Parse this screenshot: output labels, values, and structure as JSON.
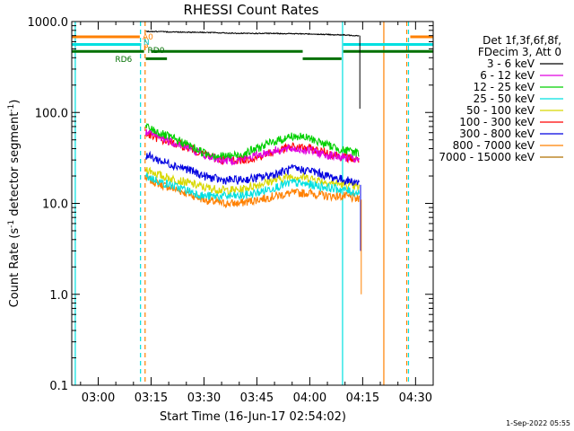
{
  "chart_data": {
    "type": "line",
    "title": "RHESSI Count Rates",
    "xlabel": "Start Time (16-Jun-17 02:54:02)",
    "ylabel_parts": [
      "Count Rate (s",
      "-1",
      " detector segment",
      "-1",
      ")"
    ],
    "yscale": "log",
    "ylim": [
      0.1,
      1000
    ],
    "xlim_minutes": [
      -7.5,
      95
    ],
    "x_tick_labels": [
      "03:00",
      "03:15",
      "03:30",
      "03:45",
      "04:00",
      "04:15",
      "04:30"
    ],
    "x_tick_minutes": [
      0,
      15,
      30,
      45,
      60,
      75,
      90
    ],
    "y_tick_labels": [
      "0.1",
      "1.0",
      "10.0",
      "100.0",
      "1000.0"
    ],
    "y_tick_values": [
      0.1,
      1,
      10,
      100,
      1000
    ],
    "legend_header": [
      "Det 1f,3f,6f,8f,",
      "FDecim 3, Att 0"
    ],
    "legend_position": "right",
    "series": [
      {
        "name": "3 - 6 keV",
        "color": "#000000",
        "x": [
          13.5,
          20,
          30,
          40,
          50,
          60,
          65,
          70,
          74
        ],
        "values": [
          780,
          770,
          760,
          740,
          740,
          730,
          720,
          710,
          700
        ]
      },
      {
        "name": "6 - 12 keV",
        "color": "#e000e0",
        "x": [
          13.5,
          18,
          25,
          30,
          35,
          40,
          45,
          50,
          55,
          60,
          65,
          70,
          74
        ],
        "values": [
          60,
          52,
          42,
          34,
          30,
          30,
          34,
          38,
          40,
          38,
          34,
          32,
          30
        ]
      },
      {
        "name": "12 - 25 keV",
        "color": "#00d000",
        "x": [
          13.5,
          18,
          25,
          30,
          35,
          40,
          45,
          50,
          55,
          60,
          65,
          70,
          74
        ],
        "values": [
          70,
          58,
          45,
          36,
          33,
          34,
          40,
          48,
          55,
          52,
          44,
          38,
          36
        ]
      },
      {
        "name": "25 - 50 keV",
        "color": "#00e0e0",
        "x": [
          13.5,
          18,
          25,
          30,
          35,
          40,
          45,
          50,
          55,
          60,
          65,
          70,
          74
        ],
        "values": [
          20,
          17,
          14,
          12,
          12,
          12,
          13,
          15,
          17,
          16,
          15,
          14,
          13
        ]
      },
      {
        "name": "50 - 100 keV",
        "color": "#d8d800",
        "x": [
          13.5,
          18,
          25,
          30,
          35,
          40,
          45,
          50,
          55,
          60,
          65,
          70,
          74
        ],
        "values": [
          24,
          20,
          17,
          15,
          14,
          14,
          16,
          18,
          20,
          19,
          17,
          16,
          15
        ]
      },
      {
        "name": "100 - 300 keV",
        "color": "#ff0000",
        "x": [
          13.5,
          18,
          25,
          30,
          35,
          40,
          45,
          50,
          55,
          60,
          65,
          70,
          74
        ],
        "values": [
          58,
          50,
          42,
          35,
          30,
          30,
          32,
          37,
          42,
          40,
          36,
          32,
          30
        ]
      },
      {
        "name": "300 - 800 keV",
        "color": "#0000e0",
        "x": [
          13.5,
          18,
          25,
          30,
          35,
          40,
          45,
          50,
          55,
          60,
          65,
          70,
          74
        ],
        "values": [
          34,
          29,
          24,
          20,
          18,
          18,
          19,
          21,
          24,
          23,
          20,
          18,
          17
        ]
      },
      {
        "name": "800 - 7000 keV",
        "color": "#ff8000",
        "x": [
          13.5,
          18,
          25,
          30,
          35,
          40,
          45,
          50,
          55,
          60,
          65,
          70,
          74
        ],
        "values": [
          19,
          16,
          13,
          11,
          10,
          10,
          11,
          12,
          13,
          13,
          12,
          12,
          11
        ]
      },
      {
        "name": "7000 - 15000 keV",
        "color": "#b07000",
        "x": [],
        "values": []
      }
    ],
    "attenuator_labels": [
      "A0",
      "P",
      "N",
      "RD0",
      "RD6"
    ],
    "vertical_lines": [
      {
        "x": -6.5,
        "color": "#00e0e0",
        "style": "solid"
      },
      {
        "x": 12.0,
        "color": "#00e0e0",
        "style": "dash"
      },
      {
        "x": 13.3,
        "color": "#ff8000",
        "style": "dash"
      },
      {
        "x": 69.3,
        "color": "#00e0e0",
        "style": "solid"
      },
      {
        "x": 81.0,
        "color": "#ff8000",
        "style": "solid"
      },
      {
        "x": 87.5,
        "color": "#ff8000",
        "style": "dash"
      },
      {
        "x": 88.0,
        "color": "#00e0e0",
        "style": "dash"
      }
    ],
    "grid": false
  },
  "footer": {
    "date_stamp": "1-Sep-2022 05:55"
  }
}
